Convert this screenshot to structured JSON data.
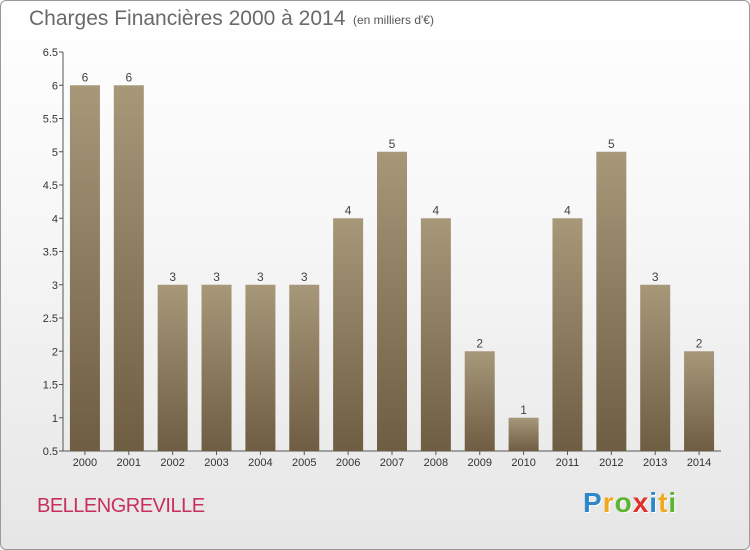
{
  "header": {
    "title": "Charges Financières 2000 à 2014",
    "subtitle": "(en milliers d'€)"
  },
  "footer": {
    "place": "BELLENGREVILLE",
    "logo": [
      "P",
      "r",
      "o",
      "x",
      "i",
      "t",
      "i"
    ],
    "logo_colors": [
      "#2f86c9",
      "#f0a81c",
      "#5cb531",
      "#e0312d",
      "#2f86c9",
      "#f0a81c",
      "#5cb531"
    ]
  },
  "chart_data": {
    "type": "bar",
    "title": "Charges Financières 2000 à 2014",
    "subtitle": "(en milliers d'€)",
    "xlabel": "",
    "ylabel": "",
    "categories": [
      "2000",
      "2001",
      "2002",
      "2003",
      "2004",
      "2005",
      "2006",
      "2007",
      "2008",
      "2009",
      "2010",
      "2011",
      "2012",
      "2013",
      "2014"
    ],
    "values": [
      6,
      6,
      3,
      3,
      3,
      3,
      4,
      5,
      4,
      2,
      1,
      4,
      5,
      3,
      2
    ],
    "data_labels": [
      "6",
      "6",
      "3",
      "3",
      "3",
      "3",
      "4",
      "5",
      "4",
      "2",
      "1",
      "4",
      "5",
      "3",
      "2"
    ],
    "ylim": [
      0.5,
      6.5
    ],
    "yticks": [
      0.5,
      1,
      1.5,
      2,
      2.5,
      3,
      3.5,
      4,
      4.5,
      5,
      5.5,
      6,
      6.5
    ],
    "ytick_labels": [
      "0.5",
      "1",
      "1.5",
      "2",
      "2.5",
      "3",
      "3.5",
      "4",
      "4.5",
      "5",
      "5.5",
      "6",
      "6.5"
    ],
    "grid": false,
    "bar_color_top": "#a8987a",
    "bar_color_bottom": "#6e5d42"
  }
}
